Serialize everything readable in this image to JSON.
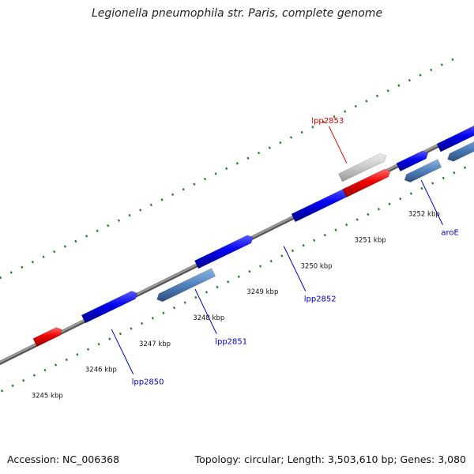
{
  "title": "Legionella pneumophila str. Paris, complete genome",
  "footer": {
    "accession": "Accession: NC_006368",
    "summary": "Topology: circular; Length: 3,503,610 bp; Genes: 3,080"
  },
  "colors": {
    "backbone": "#808080",
    "tick": "#2e7d32",
    "forward_gene": "#0000ee",
    "reverse_gene": "#4f81bd",
    "rna_gene": "#ee0000",
    "pseudo_gene": "#c8c8c8",
    "label_blue": "#0000cc",
    "label_red": "#dd0000"
  },
  "scale": {
    "unit": "kbp",
    "labels": [
      "3245 kbp",
      "3246 kbp",
      "3247 kbp",
      "3248 kbp",
      "3249 kbp",
      "3250 kbp",
      "3251 kbp",
      "3252 kbp"
    ]
  },
  "features": [
    {
      "id": "rna-1",
      "track": "outer-1",
      "type": "rna",
      "start": 3245.15,
      "end": 3245.65
    },
    {
      "id": "gene-a",
      "track": "outer-1",
      "type": "forward",
      "start": 3246.05,
      "end": 3247.05
    },
    {
      "id": "gene-b",
      "track": "outer-1",
      "type": "forward",
      "start": 3248.15,
      "end": 3249.2
    },
    {
      "id": "gene-c",
      "track": "outer-1",
      "type": "forward",
      "start": 3249.95,
      "end": 3251.05
    },
    {
      "id": "rna-2",
      "track": "outer-1",
      "type": "rna",
      "start": 3250.9,
      "end": 3251.75
    },
    {
      "id": "gene-d",
      "track": "outer-1",
      "type": "forward",
      "start": 3251.9,
      "end": 3252.45
    },
    {
      "id": "gene-e",
      "track": "outer-1",
      "type": "forward",
      "start": 3252.65,
      "end": 3253.5
    },
    {
      "id": "pseudo-1",
      "track": "outer-2",
      "type": "pseudo",
      "start": 3250.95,
      "end": 3251.8
    },
    {
      "id": "rev-1",
      "track": "inner-1",
      "type": "reverse",
      "start": 3247.3,
      "end": 3248.35
    },
    {
      "id": "rev-2",
      "track": "inner-1",
      "type": "reverse",
      "start": 3251.9,
      "end": 3252.55
    },
    {
      "id": "rev-3",
      "track": "inner-1",
      "type": "reverse",
      "start": 3252.7,
      "end": 3253.5
    }
  ],
  "gene_labels": [
    {
      "text": "lpp2850",
      "color": "blue",
      "position": 3246.4
    },
    {
      "text": "lpp2851",
      "color": "blue",
      "position": 3247.95
    },
    {
      "text": "lpp2852",
      "color": "blue",
      "position": 3249.6
    },
    {
      "text": "lpp2853",
      "color": "red",
      "position": 3251.15
    },
    {
      "text": "aroE",
      "color": "blue",
      "position": 3252.15
    }
  ]
}
